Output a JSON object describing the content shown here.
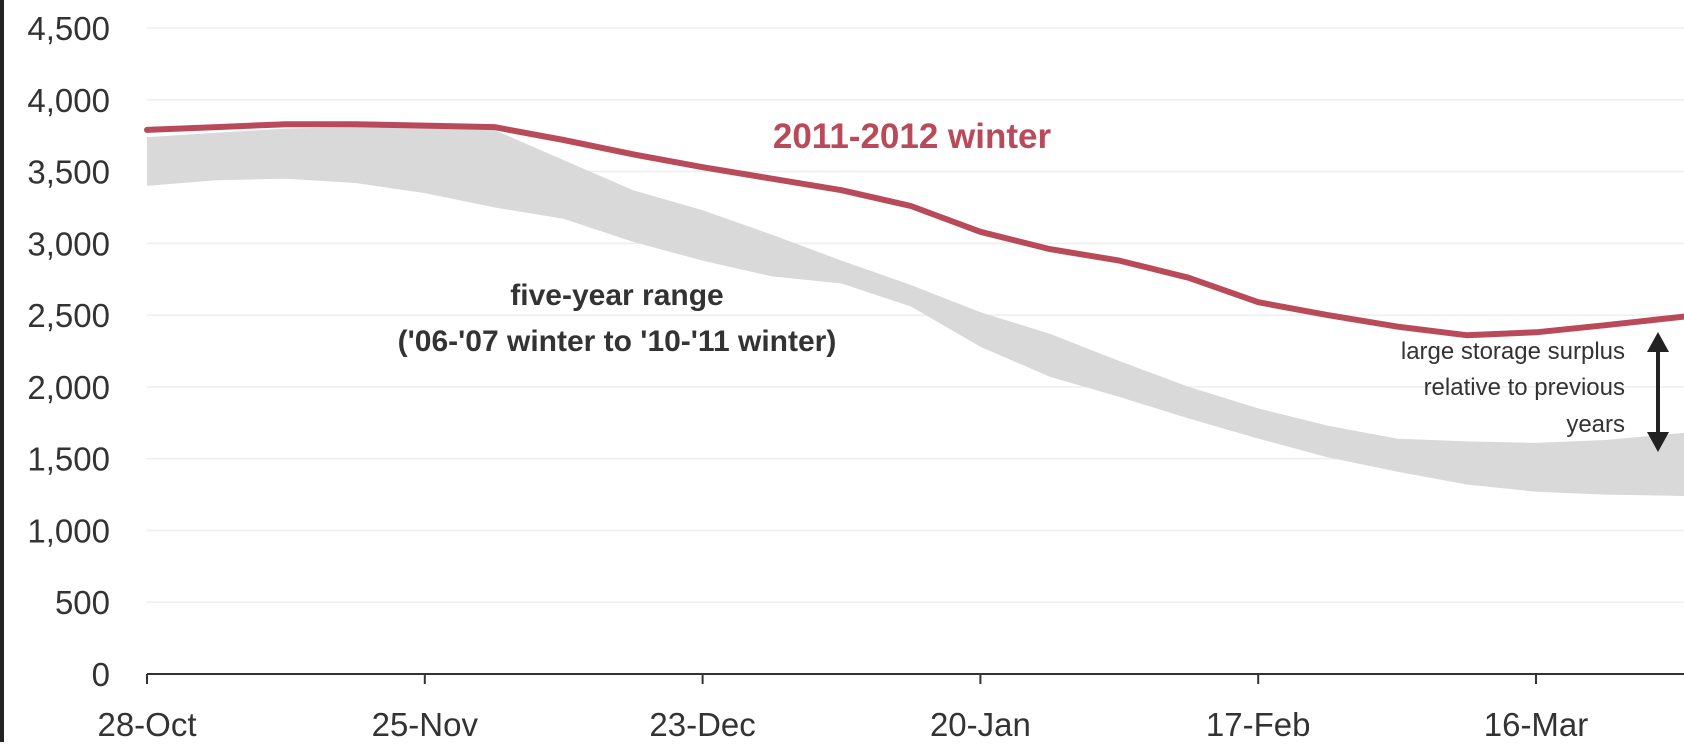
{
  "chart_data": {
    "type": "area",
    "title": "",
    "xlabel": "",
    "ylabel": "",
    "ylim": [
      0,
      4500
    ],
    "yticks": [
      0,
      500,
      1000,
      1500,
      2000,
      2500,
      3000,
      3500,
      4000,
      4500
    ],
    "ytick_labels": [
      "0",
      "500",
      "1,000",
      "1,500",
      "2,000",
      "2,500",
      "3,000",
      "3,500",
      "4,000",
      "4,500"
    ],
    "xticks": [
      {
        "day": 0,
        "label": "28-Oct"
      },
      {
        "day": 28,
        "label": "25-Nov"
      },
      {
        "day": 56,
        "label": "23-Dec"
      },
      {
        "day": 84,
        "label": "20-Jan"
      },
      {
        "day": 112,
        "label": "17-Feb"
      },
      {
        "day": 140,
        "label": "16-Mar"
      }
    ],
    "x_domain_days": [
      0,
      155
    ],
    "grid": true,
    "colors": {
      "winter_line": "#b94a5a",
      "range_band": "#d9d9d9",
      "gridline": "#eeeeee",
      "axis": "#333333",
      "arrow": "#222222"
    },
    "series": [
      {
        "name": "2011-2012 winter",
        "x": [
          0,
          7,
          14,
          21,
          28,
          35,
          42,
          49,
          56,
          63,
          70,
          77,
          84,
          91,
          98,
          105,
          112,
          119,
          126,
          133,
          140,
          147,
          155
        ],
        "values": [
          3790,
          3810,
          3830,
          3830,
          3820,
          3810,
          3720,
          3620,
          3530,
          3450,
          3370,
          3260,
          3080,
          2960,
          2880,
          2760,
          2590,
          2500,
          2420,
          2360,
          2380,
          2430,
          2490
        ]
      }
    ],
    "range_band": {
      "label_line1": "five-year range",
      "label_line2": "('06-'07 winter to '10-'11 winter)",
      "x": [
        0,
        7,
        14,
        21,
        28,
        35,
        42,
        49,
        56,
        63,
        70,
        77,
        84,
        91,
        98,
        105,
        112,
        119,
        126,
        133,
        140,
        147,
        155
      ],
      "upper": [
        3740,
        3770,
        3800,
        3810,
        3810,
        3790,
        3580,
        3370,
        3230,
        3060,
        2880,
        2710,
        2520,
        2370,
        2180,
        2000,
        1850,
        1730,
        1640,
        1620,
        1610,
        1630,
        1680
      ],
      "lower": [
        3400,
        3440,
        3450,
        3420,
        3350,
        3250,
        3170,
        3010,
        2880,
        2770,
        2720,
        2560,
        2280,
        2070,
        1930,
        1780,
        1640,
        1510,
        1410,
        1320,
        1270,
        1250,
        1240
      ]
    },
    "annotation": {
      "lines": [
        "large storage surplus",
        "relative to previous",
        "years"
      ]
    }
  }
}
